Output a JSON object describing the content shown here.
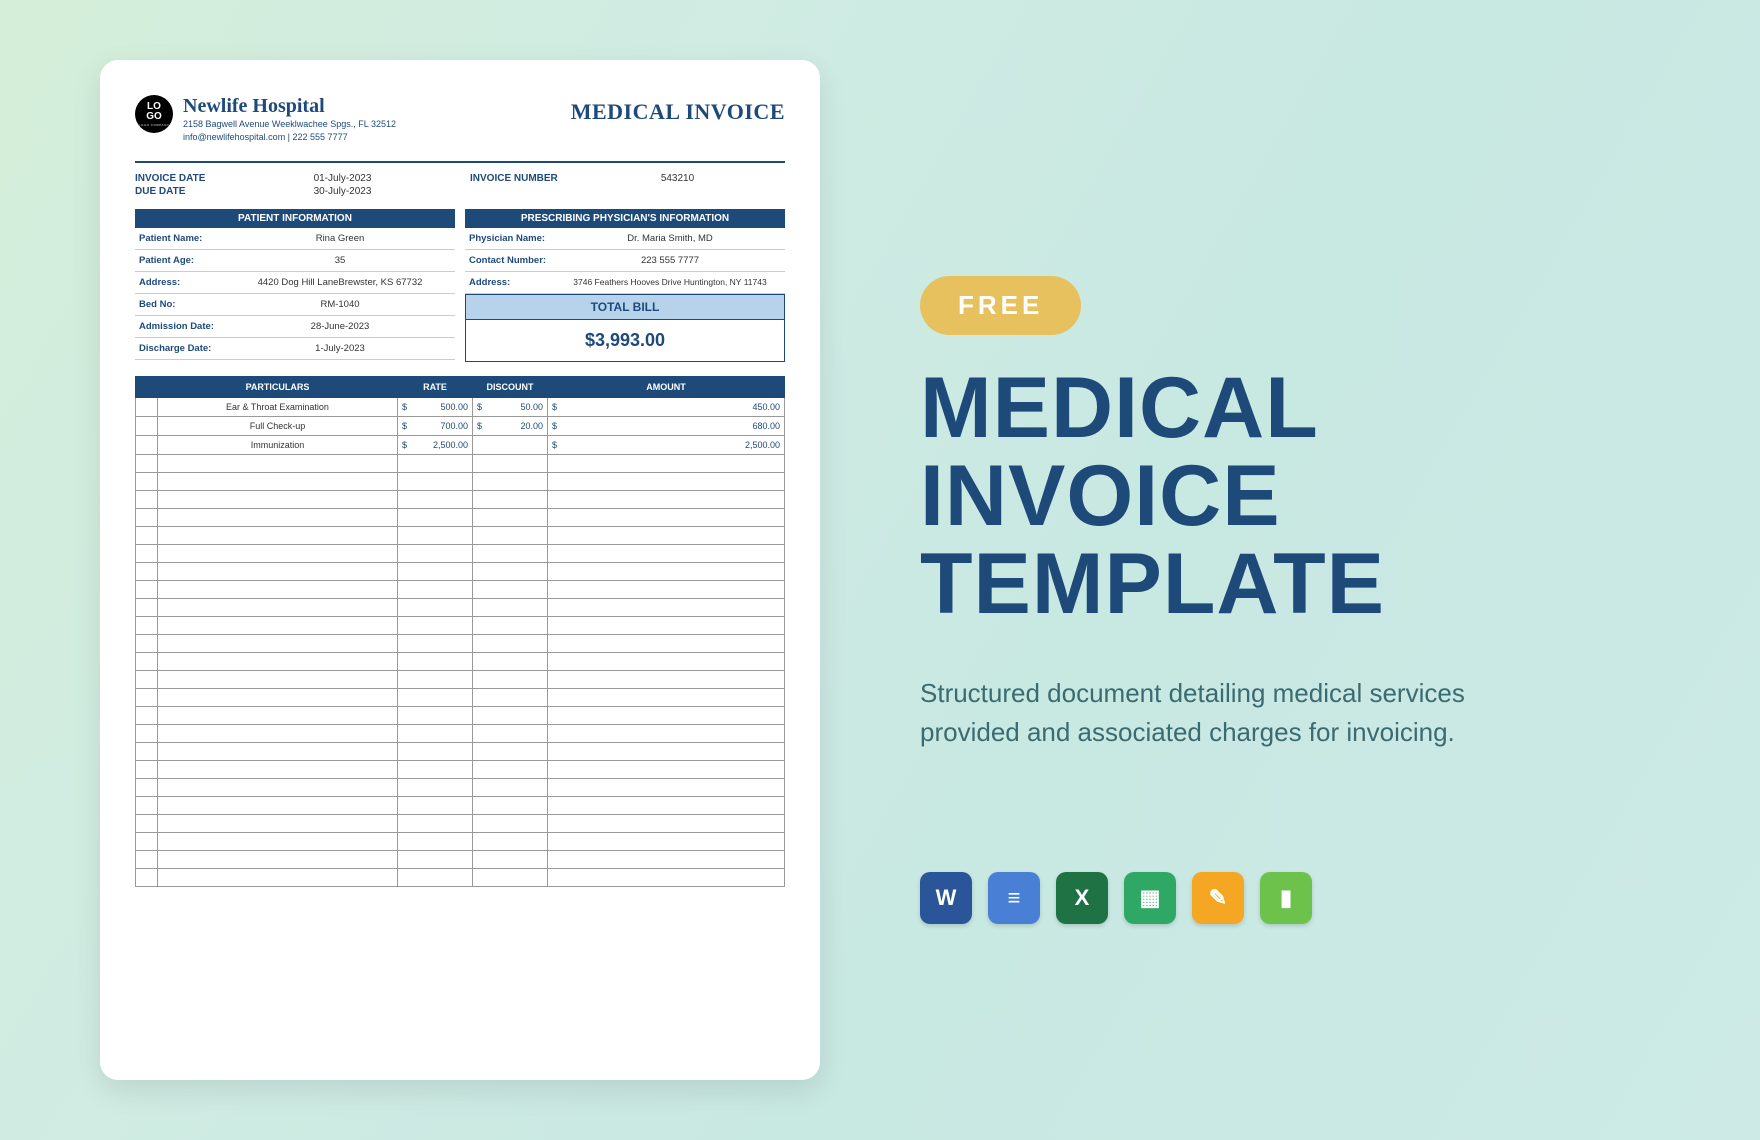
{
  "doc": {
    "logo_top": "LO",
    "logo_bot": "GO",
    "logo_sub": "LOGO COMPANY",
    "hospital_name": "Newlife Hospital",
    "hospital_addr": "2158 Bagwell Avenue Weeklwachee Spgs., FL 32512",
    "hospital_contact": "info@newlifehospital.com | 222 555 7777",
    "invoice_title": "MEDICAL INVOICE",
    "meta": {
      "invoice_date_label": "INVOICE DATE",
      "invoice_date": "01-July-2023",
      "due_date_label": "DUE DATE",
      "due_date": "30-July-2023",
      "invoice_number_label": "INVOICE NUMBER",
      "invoice_number": "543210"
    },
    "patient_header": "PATIENT INFORMATION",
    "physician_header": "PRESCRIBING PHYSICIAN'S INFORMATION",
    "patient": {
      "name_label": "Patient Name:",
      "name": "Rina Green",
      "age_label": "Patient Age:",
      "age": "35",
      "addr_label": "Address:",
      "addr": "4420 Dog Hill LaneBrewster, KS 67732",
      "bed_label": "Bed No:",
      "bed": "RM-1040",
      "adm_label": "Admission Date:",
      "adm": "28-June-2023",
      "dis_label": "Discharge Date:",
      "dis": "1-July-2023"
    },
    "physician": {
      "name_label": "Physician Name:",
      "name": "Dr. Maria Smith, MD",
      "contact_label": "Contact Number:",
      "contact": "223 555 7777",
      "addr_label": "Address:",
      "addr": "3746 Feathers Hooves Drive Huntington, NY 11743"
    },
    "total_label": "TOTAL BILL",
    "total_value": "$3,993.00",
    "columns": {
      "chk": "",
      "part": "PARTICULARS",
      "rate": "RATE",
      "disc": "DISCOUNT",
      "amt": "AMOUNT"
    },
    "items": [
      {
        "part": "Ear & Throat Examination",
        "rate": "500.00",
        "disc": "50.00",
        "amt": "450.00"
      },
      {
        "part": "Full Check-up",
        "rate": "700.00",
        "disc": "20.00",
        "amt": "680.00"
      },
      {
        "part": "Immunization",
        "rate": "2,500.00",
        "disc": "",
        "amt": "2,500.00"
      }
    ],
    "currency": "$",
    "empty_rows": 24
  },
  "promo": {
    "badge": "FREE",
    "title_l1": "MEDICAL",
    "title_l2": "INVOICE",
    "title_l3": "TEMPLATE",
    "desc": "Structured document detailing medical services provided and associated charges for invoicing.",
    "icons": [
      {
        "name": "word-icon",
        "bg": "#2a5599",
        "glyph": "W"
      },
      {
        "name": "gdocs-icon",
        "bg": "#4a7fd6",
        "glyph": "≡"
      },
      {
        "name": "excel-icon",
        "bg": "#1f7244",
        "glyph": "X"
      },
      {
        "name": "sheets-icon",
        "bg": "#2fa866",
        "glyph": "▦"
      },
      {
        "name": "pages-icon",
        "bg": "#f5a623",
        "glyph": "✎"
      },
      {
        "name": "numbers-icon",
        "bg": "#6cc24a",
        "glyph": "▮"
      }
    ]
  }
}
